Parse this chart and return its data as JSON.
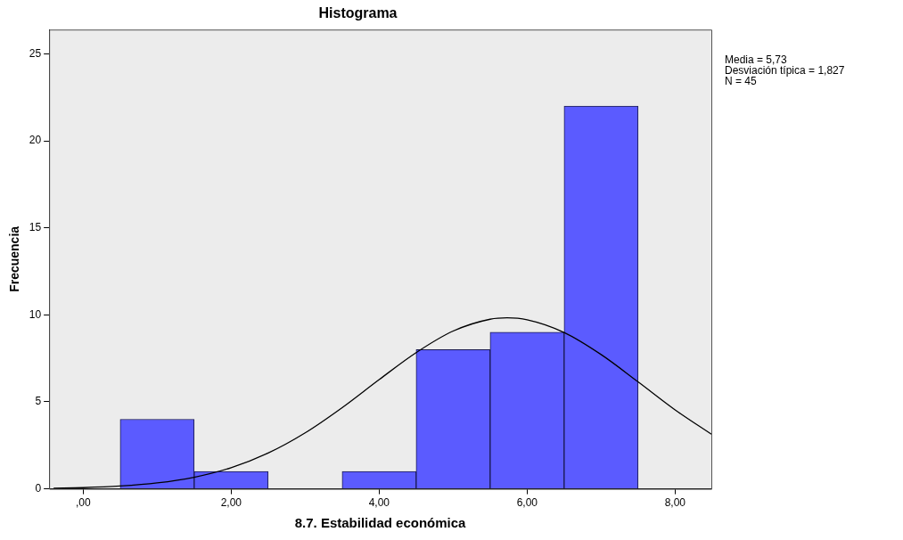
{
  "chart_data": {
    "type": "histogram",
    "title": "Histograma",
    "xlabel": "8.7. Estabilidad económica",
    "ylabel": "Frecuencia",
    "bins": [
      0.5,
      1.5,
      2.5,
      3.5,
      4.5,
      5.5,
      6.5,
      7.5
    ],
    "values": [
      4,
      1,
      0,
      1,
      8,
      9,
      22
    ],
    "color": "#5b5bff",
    "series": [
      {
        "type": "line",
        "color": "#000000",
        "x": [
          -0.4,
          0,
          0.5,
          1,
          1.5,
          2,
          2.5,
          3,
          3.5,
          4,
          4.5,
          5,
          5.5,
          5.73,
          6,
          6.5,
          7,
          7.5,
          8,
          8.49
        ],
        "values": [
          0.04,
          0.07,
          0.16,
          0.34,
          0.67,
          1.22,
          2.06,
          3.22,
          4.67,
          6.28,
          7.83,
          9.07,
          9.75,
          9.83,
          9.72,
          8.99,
          7.72,
          6.15,
          4.54,
          3.14
        ]
      }
    ],
    "xlim": [
      -0.46,
      8.49
    ],
    "xticks": [
      {
        "value": 0,
        "label": ",00"
      },
      {
        "value": 2,
        "label": "2,00"
      },
      {
        "value": 4,
        "label": "4,00"
      },
      {
        "value": 6,
        "label": "6,00"
      },
      {
        "value": 8,
        "label": "8,00"
      }
    ],
    "ylim": [
      0,
      26.4
    ],
    "yticks": [
      0,
      5,
      10,
      15,
      20,
      25
    ],
    "annotations": [
      "Media = 5,73",
      "Desviación típica = 1,827",
      "N = 45"
    ],
    "grid": false,
    "legend": false,
    "marker": "none",
    "line_style": "solid"
  }
}
